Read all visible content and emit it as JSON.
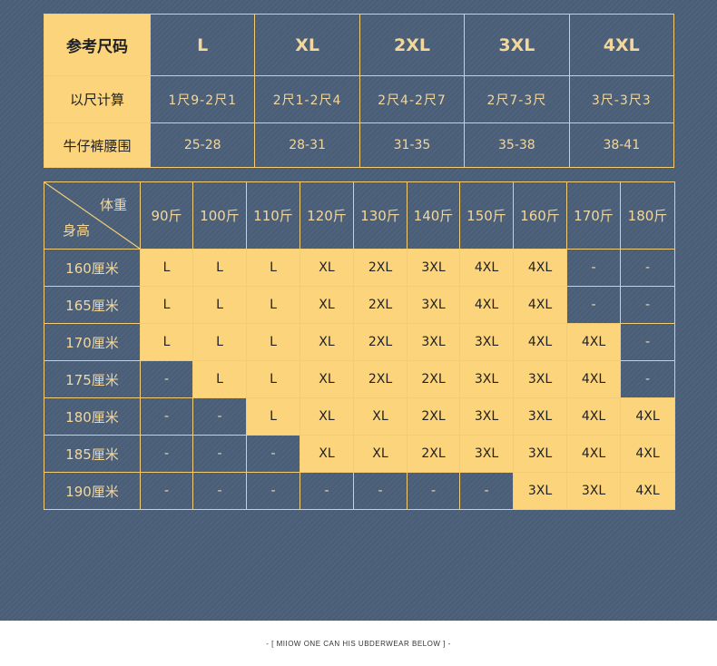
{
  "reference": {
    "title": "参考尺码",
    "sizes": [
      "L",
      "XL",
      "2XL",
      "3XL",
      "4XL"
    ],
    "rows": [
      {
        "label": "以尺计算",
        "values": [
          "1尺9-2尺1",
          "2尺1-2尺4",
          "2尺4-2尺7",
          "2尺7-3尺",
          "3尺-3尺3"
        ]
      },
      {
        "label": "牛仔裤腰围",
        "values": [
          "25-28",
          "28-31",
          "31-35",
          "35-38",
          "38-41"
        ]
      }
    ]
  },
  "grid": {
    "corner_weight": "体重",
    "corner_height": "身高",
    "weights": [
      "90斤",
      "100斤",
      "110斤",
      "120斤",
      "130斤",
      "140斤",
      "150斤",
      "160斤",
      "170斤",
      "180斤"
    ],
    "rows": [
      {
        "height": "160厘米",
        "cells": [
          "L",
          "L",
          "L",
          "XL",
          "2XL",
          "3XL",
          "4XL",
          "4XL",
          "-",
          "-"
        ]
      },
      {
        "height": "165厘米",
        "cells": [
          "L",
          "L",
          "L",
          "XL",
          "2XL",
          "3XL",
          "4XL",
          "4XL",
          "-",
          "-"
        ]
      },
      {
        "height": "170厘米",
        "cells": [
          "L",
          "L",
          "L",
          "XL",
          "2XL",
          "3XL",
          "3XL",
          "4XL",
          "4XL",
          "-"
        ]
      },
      {
        "height": "175厘米",
        "cells": [
          "-",
          "L",
          "L",
          "XL",
          "2XL",
          "2XL",
          "3XL",
          "3XL",
          "4XL",
          "-"
        ]
      },
      {
        "height": "180厘米",
        "cells": [
          "-",
          "-",
          "L",
          "XL",
          "XL",
          "2XL",
          "3XL",
          "3XL",
          "4XL",
          "4XL"
        ]
      },
      {
        "height": "185厘米",
        "cells": [
          "-",
          "-",
          "-",
          "XL",
          "XL",
          "2XL",
          "3XL",
          "3XL",
          "4XL",
          "4XL"
        ]
      },
      {
        "height": "190厘米",
        "cells": [
          "-",
          "-",
          "-",
          "-",
          "-",
          "-",
          "-",
          "3XL",
          "3XL",
          "4XL"
        ]
      }
    ]
  },
  "footer": {
    "text": "- [ MIIOW ONE CAN HIS UBDERWEAR BELOW ] -"
  },
  "colors": {
    "background": "#4a5e78",
    "accent": "#fbd47c",
    "line": "#f2cd76",
    "text_light": "#f4d79a"
  }
}
